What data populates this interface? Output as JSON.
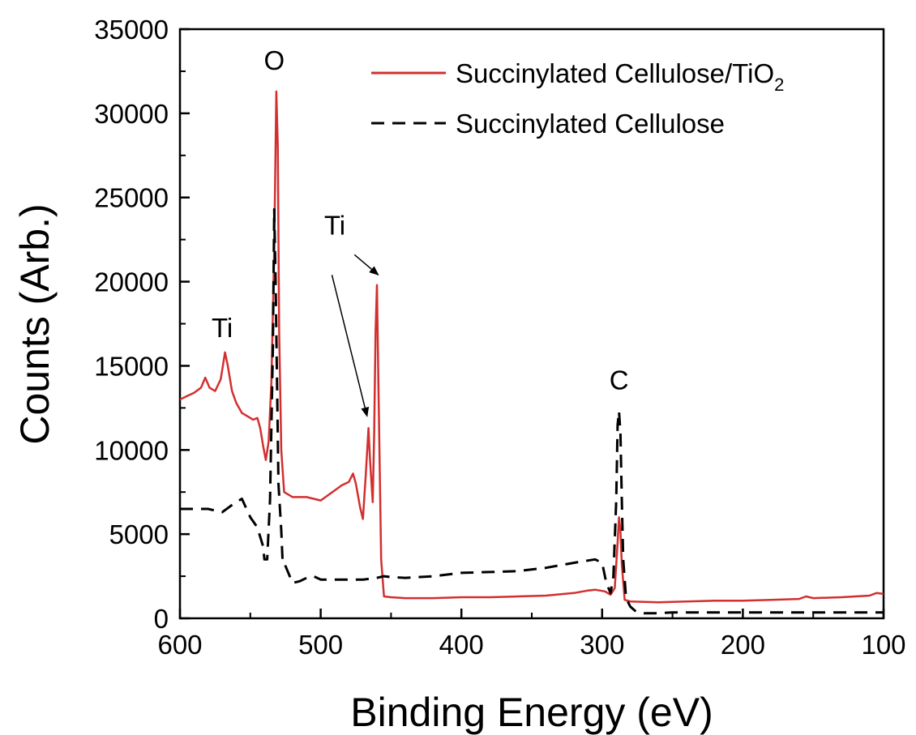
{
  "chart_data": {
    "type": "line",
    "title": "",
    "xlabel": "Binding Energy (eV)",
    "ylabel": "Counts (Arb.)",
    "xlim": [
      600,
      100
    ],
    "ylim": [
      0,
      35000
    ],
    "x_reversed": true,
    "grid": false,
    "legend_position": "top-right",
    "x_ticks": [
      600,
      500,
      400,
      300,
      200,
      100
    ],
    "y_ticks": [
      0,
      5000,
      10000,
      15000,
      20000,
      25000,
      30000,
      35000
    ],
    "series": [
      {
        "name": "Succinylated Cellulose/TiO",
        "name_subscript": "2",
        "color": "#d32f2f",
        "style": "solid",
        "points": [
          [
            600,
            13000
          ],
          [
            595,
            13200
          ],
          [
            590,
            13400
          ],
          [
            585,
            13700
          ],
          [
            582,
            14300
          ],
          [
            579,
            13700
          ],
          [
            575,
            13500
          ],
          [
            571,
            14200
          ],
          [
            568,
            15800
          ],
          [
            566,
            15000
          ],
          [
            563,
            13500
          ],
          [
            560,
            12800
          ],
          [
            556,
            12200
          ],
          [
            552,
            12000
          ],
          [
            548,
            11800
          ],
          [
            545,
            11900
          ],
          [
            543,
            11300
          ],
          [
            541,
            10300
          ],
          [
            539,
            9400
          ],
          [
            537,
            10500
          ],
          [
            535,
            14000
          ],
          [
            533,
            22000
          ],
          [
            531.5,
            31300
          ],
          [
            530.5,
            28000
          ],
          [
            529.5,
            17000
          ],
          [
            528,
            10000
          ],
          [
            526,
            7500
          ],
          [
            520,
            7200
          ],
          [
            510,
            7200
          ],
          [
            500,
            7000
          ],
          [
            495,
            7300
          ],
          [
            490,
            7600
          ],
          [
            485,
            7900
          ],
          [
            480,
            8100
          ],
          [
            477,
            8600
          ],
          [
            475,
            8000
          ],
          [
            472,
            6600
          ],
          [
            470,
            5900
          ],
          [
            468,
            8500
          ],
          [
            466,
            11300
          ],
          [
            465,
            9500
          ],
          [
            463,
            6900
          ],
          [
            462,
            11000
          ],
          [
            461,
            17000
          ],
          [
            460,
            19800
          ],
          [
            459,
            14000
          ],
          [
            457,
            3500
          ],
          [
            455,
            1300
          ],
          [
            450,
            1250
          ],
          [
            440,
            1200
          ],
          [
            420,
            1200
          ],
          [
            400,
            1250
          ],
          [
            380,
            1250
          ],
          [
            360,
            1300
          ],
          [
            340,
            1350
          ],
          [
            320,
            1500
          ],
          [
            310,
            1650
          ],
          [
            305,
            1700
          ],
          [
            298,
            1600
          ],
          [
            294,
            1400
          ],
          [
            291,
            1800
          ],
          [
            289,
            4500
          ],
          [
            288,
            6000
          ],
          [
            287,
            5200
          ],
          [
            286,
            3200
          ],
          [
            284,
            1100
          ],
          [
            280,
            1000
          ],
          [
            260,
            950
          ],
          [
            240,
            1000
          ],
          [
            220,
            1050
          ],
          [
            200,
            1050
          ],
          [
            180,
            1100
          ],
          [
            160,
            1150
          ],
          [
            155,
            1300
          ],
          [
            150,
            1200
          ],
          [
            130,
            1250
          ],
          [
            110,
            1350
          ],
          [
            105,
            1500
          ],
          [
            100,
            1450
          ]
        ]
      },
      {
        "name": "Succinylated Cellulose",
        "color": "#000000",
        "style": "dashed",
        "points": [
          [
            600,
            6500
          ],
          [
            580,
            6500
          ],
          [
            570,
            6300
          ],
          [
            562,
            6800
          ],
          [
            556,
            7100
          ],
          [
            550,
            6000
          ],
          [
            545,
            5400
          ],
          [
            541,
            4300
          ],
          [
            540,
            3500
          ],
          [
            538,
            3500
          ],
          [
            536,
            7000
          ],
          [
            534,
            16000
          ],
          [
            533,
            24300
          ],
          [
            532,
            20000
          ],
          [
            530,
            8000
          ],
          [
            528,
            5200
          ],
          [
            527,
            3300
          ],
          [
            526,
            3300
          ],
          [
            520,
            2100
          ],
          [
            515,
            2200
          ],
          [
            510,
            2400
          ],
          [
            505,
            2500
          ],
          [
            500,
            2300
          ],
          [
            490,
            2300
          ],
          [
            480,
            2300
          ],
          [
            470,
            2300
          ],
          [
            460,
            2400
          ],
          [
            455,
            2500
          ],
          [
            450,
            2450
          ],
          [
            440,
            2400
          ],
          [
            420,
            2500
          ],
          [
            400,
            2700
          ],
          [
            380,
            2750
          ],
          [
            360,
            2800
          ],
          [
            340,
            3000
          ],
          [
            320,
            3300
          ],
          [
            305,
            3500
          ],
          [
            300,
            3300
          ],
          [
            297,
            2100
          ],
          [
            294,
            1500
          ],
          [
            292,
            2500
          ],
          [
            290,
            7000
          ],
          [
            289,
            11500
          ],
          [
            288,
            12300
          ],
          [
            287,
            11000
          ],
          [
            286,
            7000
          ],
          [
            285,
            3500
          ],
          [
            283,
            1200
          ],
          [
            280,
            700
          ],
          [
            276,
            400
          ],
          [
            270,
            300
          ],
          [
            260,
            300
          ],
          [
            250,
            350
          ],
          [
            240,
            350
          ],
          [
            200,
            350
          ],
          [
            150,
            350
          ],
          [
            120,
            350
          ],
          [
            100,
            350
          ]
        ]
      }
    ],
    "annotations": [
      {
        "text": "O",
        "x": 533,
        "y": 32600
      },
      {
        "text": "Ti",
        "x": 570,
        "y": 16700
      },
      {
        "text": "Ti",
        "x": 490,
        "y": 22800
      },
      {
        "text": "C",
        "x": 288,
        "y": 13600
      }
    ],
    "arrows": [
      {
        "from": [
          476,
          21600
        ],
        "to": [
          459,
          20400
        ]
      },
      {
        "from": [
          492,
          20400
        ],
        "to": [
          467,
          12000
        ]
      }
    ]
  }
}
